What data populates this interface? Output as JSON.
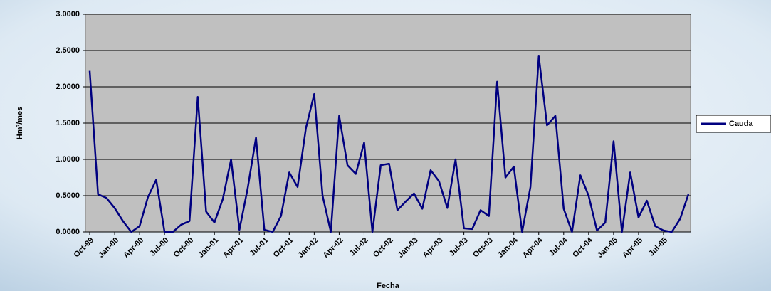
{
  "chart_data": {
    "type": "line",
    "x_label": "Fecha",
    "y_label": "Hm³/mes",
    "categories": [
      "Oct-99",
      null,
      null,
      "Jan-00",
      null,
      null,
      "Apr-00",
      null,
      null,
      "Jul-00",
      null,
      null,
      "Oct-00",
      null,
      null,
      "Jan-01",
      null,
      null,
      "Apr-01",
      null,
      null,
      "Jul-01",
      null,
      null,
      "Oct-01",
      null,
      null,
      "Jan-02",
      null,
      null,
      "Apr-02",
      null,
      null,
      "Jul-02",
      null,
      null,
      "Oct-02",
      null,
      null,
      "Jan-03",
      null,
      null,
      "Apr-03",
      null,
      null,
      "Jul-03",
      null,
      null,
      "Oct-03",
      null,
      null,
      "Jan-04",
      null,
      null,
      "Apr-04",
      null,
      null,
      "Jul-04",
      null,
      null,
      "Oct-04",
      null,
      null,
      "Jan-05",
      null,
      null,
      "Apr-05",
      null,
      null,
      "Jul-05",
      null,
      null,
      null
    ],
    "series": [
      {
        "name": "Cauda",
        "color": "#000080",
        "values": [
          2.22,
          0.52,
          0.47,
          0.33,
          0.15,
          0.0,
          0.08,
          0.48,
          0.72,
          0.0,
          0.0,
          0.1,
          0.15,
          1.86,
          0.28,
          0.13,
          0.45,
          1.0,
          0.03,
          0.6,
          1.3,
          0.03,
          0.0,
          0.22,
          0.82,
          0.62,
          1.43,
          1.9,
          0.5,
          0.0,
          1.6,
          0.92,
          0.8,
          1.23,
          0.0,
          0.92,
          0.94,
          0.3,
          0.42,
          0.53,
          0.32,
          0.85,
          0.7,
          0.33,
          1.0,
          0.05,
          0.04,
          0.3,
          0.22,
          2.07,
          0.75,
          0.9,
          0.0,
          0.62,
          2.42,
          1.47,
          1.6,
          0.32,
          0.0,
          0.78,
          0.5,
          0.02,
          0.13,
          1.25,
          0.0,
          0.82,
          0.2,
          0.43,
          0.08,
          0.02,
          0.0,
          0.18,
          0.52
        ]
      }
    ],
    "ylim": [
      0,
      3
    ],
    "yticks": [
      {
        "value": 0,
        "label": "0.0000"
      },
      {
        "value": 0.5,
        "label": "0.5000"
      },
      {
        "value": 1,
        "label": "1.0000"
      },
      {
        "value": 1.5,
        "label": "1.5000"
      },
      {
        "value": 2,
        "label": "2.0000"
      },
      {
        "value": 2.5,
        "label": "2.5000"
      },
      {
        "value": 3,
        "label": "3.0000"
      }
    ],
    "grid": true,
    "legend": "right",
    "plot_background": "#c0c0c0"
  }
}
